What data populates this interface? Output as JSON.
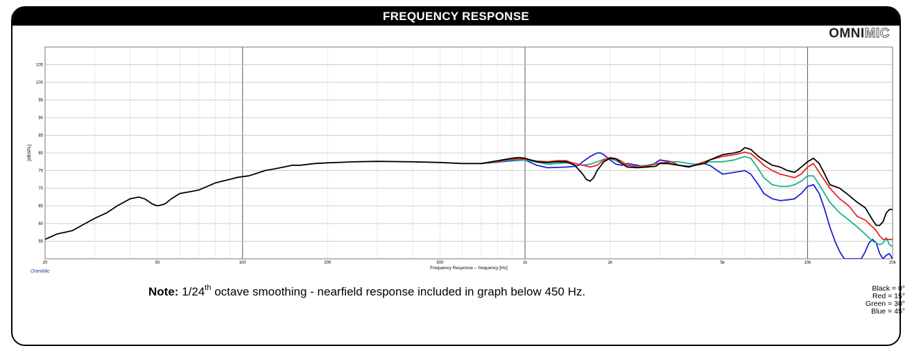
{
  "header": {
    "title": "FREQUENCY RESPONSE"
  },
  "logo": {
    "part1": "OMNI",
    "part2": "MIC"
  },
  "watermark": "OmniMic",
  "note": {
    "bold": "Note:",
    "prefix": "1/24",
    "sup": "th",
    "rest": "octave smoothing - nearfield response included in graph below 450 Hz."
  },
  "legend": [
    "Black = 0°",
    "Red = 15°",
    "Green = 30°",
    "Blue = 45°"
  ],
  "chart_data": {
    "type": "line",
    "title": "",
    "xlabel": "Frequency Response -- frequency [Hz]",
    "ylabel": "[dBSPL]",
    "x_scale": "log",
    "xlim": [
      20,
      20000
    ],
    "ylim": [
      50,
      110
    ],
    "y_ticks": [
      55,
      60,
      65,
      70,
      75,
      80,
      85,
      90,
      95,
      100,
      105
    ],
    "x_ticks": [
      {
        "value": 20,
        "label": "20"
      },
      {
        "value": 50,
        "label": "50"
      },
      {
        "value": 100,
        "label": "100"
      },
      {
        "value": 200,
        "label": "200"
      },
      {
        "value": 500,
        "label": "500"
      },
      {
        "value": 1000,
        "label": "1k"
      },
      {
        "value": 2000,
        "label": "2k"
      },
      {
        "value": 5000,
        "label": "5k"
      },
      {
        "value": 10000,
        "label": "10k"
      },
      {
        "value": 20000,
        "label": "20k"
      }
    ],
    "grid": true,
    "series": [
      {
        "name": "Black = 0°",
        "color": "#000000",
        "points": [
          [
            20,
            55.5
          ],
          [
            22,
            57
          ],
          [
            25,
            58
          ],
          [
            27,
            59.5
          ],
          [
            30,
            61.5
          ],
          [
            33,
            63
          ],
          [
            36,
            65
          ],
          [
            40,
            67
          ],
          [
            43,
            67.5
          ],
          [
            45,
            67
          ],
          [
            48,
            65.5
          ],
          [
            50,
            65
          ],
          [
            53,
            65.5
          ],
          [
            56,
            67
          ],
          [
            60,
            68.5
          ],
          [
            65,
            69
          ],
          [
            70,
            69.5
          ],
          [
            75,
            70.5
          ],
          [
            80,
            71.5
          ],
          [
            90,
            72.5
          ],
          [
            95,
            73
          ],
          [
            100,
            73.3
          ],
          [
            105,
            73.5
          ],
          [
            110,
            74
          ],
          [
            120,
            75
          ],
          [
            130,
            75.5
          ],
          [
            140,
            76
          ],
          [
            150,
            76.5
          ],
          [
            160,
            76.5
          ],
          [
            180,
            77
          ],
          [
            200,
            77.2
          ],
          [
            250,
            77.5
          ],
          [
            300,
            77.6
          ],
          [
            400,
            77.5
          ],
          [
            500,
            77.3
          ],
          [
            600,
            77
          ],
          [
            700,
            77
          ],
          [
            800,
            77.8
          ],
          [
            900,
            78.5
          ],
          [
            950,
            78.7
          ],
          [
            1000,
            78.5
          ],
          [
            1100,
            77.5
          ],
          [
            1200,
            77.3
          ],
          [
            1300,
            77.5
          ],
          [
            1400,
            77.5
          ],
          [
            1500,
            76.5
          ],
          [
            1600,
            74
          ],
          [
            1650,
            72.5
          ],
          [
            1700,
            72
          ],
          [
            1750,
            73
          ],
          [
            1800,
            75
          ],
          [
            1900,
            77.5
          ],
          [
            2000,
            78.5
          ],
          [
            2100,
            78.3
          ],
          [
            2200,
            77
          ],
          [
            2300,
            76
          ],
          [
            2500,
            75.8
          ],
          [
            2700,
            76
          ],
          [
            2900,
            76.2
          ],
          [
            3000,
            77
          ],
          [
            3200,
            77
          ],
          [
            3500,
            76.5
          ],
          [
            3800,
            76
          ],
          [
            4000,
            76.5
          ],
          [
            4300,
            77
          ],
          [
            4500,
            78
          ],
          [
            5000,
            79.5
          ],
          [
            5500,
            80
          ],
          [
            5800,
            80.5
          ],
          [
            6000,
            81.5
          ],
          [
            6300,
            81
          ],
          [
            6700,
            79
          ],
          [
            7000,
            78
          ],
          [
            7500,
            76.5
          ],
          [
            8000,
            76
          ],
          [
            8500,
            75
          ],
          [
            9000,
            74.5
          ],
          [
            9500,
            76
          ],
          [
            10000,
            77.5
          ],
          [
            10500,
            78.5
          ],
          [
            11000,
            77
          ],
          [
            11500,
            74
          ],
          [
            12000,
            71
          ],
          [
            13000,
            70
          ],
          [
            14000,
            68
          ],
          [
            15000,
            66
          ],
          [
            16000,
            64.5
          ],
          [
            17000,
            61
          ],
          [
            17500,
            59.5
          ],
          [
            18000,
            59.5
          ],
          [
            18500,
            60.5
          ],
          [
            19000,
            63
          ],
          [
            19500,
            64
          ],
          [
            20000,
            64
          ]
        ]
      },
      {
        "name": "Red = 15°",
        "color": "#e8231f",
        "points": [
          [
            700,
            77
          ],
          [
            800,
            77.6
          ],
          [
            900,
            78.3
          ],
          [
            1000,
            78.3
          ],
          [
            1100,
            77.7
          ],
          [
            1200,
            77.5
          ],
          [
            1300,
            77.8
          ],
          [
            1400,
            77.8
          ],
          [
            1500,
            77
          ],
          [
            1600,
            76.5
          ],
          [
            1700,
            76
          ],
          [
            1800,
            76.5
          ],
          [
            1900,
            78
          ],
          [
            2000,
            78.7
          ],
          [
            2100,
            78.4
          ],
          [
            2200,
            77.6
          ],
          [
            2300,
            76.5
          ],
          [
            2500,
            76
          ],
          [
            2700,
            76.3
          ],
          [
            2900,
            76.8
          ],
          [
            3000,
            77.2
          ],
          [
            3300,
            77.4
          ],
          [
            3500,
            76.5
          ],
          [
            3800,
            76
          ],
          [
            4000,
            76.6
          ],
          [
            4300,
            77.5
          ],
          [
            4500,
            78
          ],
          [
            5000,
            79
          ],
          [
            5500,
            79.5
          ],
          [
            6000,
            80.2
          ],
          [
            6300,
            79.8
          ],
          [
            6700,
            78
          ],
          [
            7000,
            76.5
          ],
          [
            7500,
            75
          ],
          [
            8000,
            74
          ],
          [
            8500,
            73.5
          ],
          [
            9000,
            73
          ],
          [
            9500,
            74
          ],
          [
            10000,
            76
          ],
          [
            10500,
            77
          ],
          [
            11000,
            74.5
          ],
          [
            12000,
            70
          ],
          [
            13000,
            67
          ],
          [
            14000,
            65
          ],
          [
            15000,
            62
          ],
          [
            16000,
            61
          ],
          [
            17000,
            59
          ],
          [
            17500,
            58
          ],
          [
            18000,
            56.5
          ],
          [
            18500,
            55.5
          ],
          [
            19000,
            55.5
          ],
          [
            19500,
            55.5
          ],
          [
            20000,
            55.5
          ]
        ]
      },
      {
        "name": "Green = 30°",
        "color": "#17b388",
        "points": [
          [
            700,
            77
          ],
          [
            800,
            77.5
          ],
          [
            900,
            78
          ],
          [
            1000,
            78
          ],
          [
            1100,
            77.4
          ],
          [
            1200,
            76.8
          ],
          [
            1300,
            77
          ],
          [
            1400,
            77.2
          ],
          [
            1500,
            77
          ],
          [
            1600,
            76.5
          ],
          [
            1700,
            76.8
          ],
          [
            1800,
            77.5
          ],
          [
            1900,
            78.2
          ],
          [
            2000,
            78.4
          ],
          [
            2100,
            77.8
          ],
          [
            2200,
            77
          ],
          [
            2300,
            76.5
          ],
          [
            2500,
            76.2
          ],
          [
            2700,
            76.5
          ],
          [
            2900,
            77
          ],
          [
            3000,
            77
          ],
          [
            3300,
            77.5
          ],
          [
            3500,
            77.5
          ],
          [
            3800,
            77
          ],
          [
            4000,
            76.8
          ],
          [
            4300,
            77
          ],
          [
            4500,
            77.5
          ],
          [
            5000,
            77.5
          ],
          [
            5500,
            78
          ],
          [
            6000,
            79
          ],
          [
            6300,
            78.5
          ],
          [
            6700,
            75.5
          ],
          [
            7000,
            73
          ],
          [
            7500,
            71
          ],
          [
            8000,
            70.5
          ],
          [
            8500,
            70.5
          ],
          [
            9000,
            71
          ],
          [
            9500,
            72
          ],
          [
            10000,
            73.5
          ],
          [
            10500,
            73.5
          ],
          [
            11000,
            71
          ],
          [
            12000,
            66
          ],
          [
            13000,
            63
          ],
          [
            14000,
            61
          ],
          [
            15000,
            59
          ],
          [
            16000,
            57
          ],
          [
            17000,
            55
          ],
          [
            17500,
            54.5
          ],
          [
            18000,
            54
          ],
          [
            18500,
            54.5
          ],
          [
            19000,
            56
          ],
          [
            19500,
            54
          ],
          [
            20000,
            53.5
          ]
        ]
      },
      {
        "name": "Blue = 45°",
        "color": "#1c1fd9",
        "points": [
          [
            700,
            77
          ],
          [
            800,
            77.4
          ],
          [
            900,
            77.8
          ],
          [
            1000,
            78
          ],
          [
            1100,
            76.5
          ],
          [
            1200,
            75.8
          ],
          [
            1300,
            75.9
          ],
          [
            1400,
            76
          ],
          [
            1500,
            76.2
          ],
          [
            1550,
            76.5
          ],
          [
            1600,
            77.5
          ],
          [
            1700,
            79
          ],
          [
            1800,
            80
          ],
          [
            1850,
            80
          ],
          [
            1900,
            79.5
          ],
          [
            2000,
            78
          ],
          [
            2100,
            76.8
          ],
          [
            2200,
            76.5
          ],
          [
            2300,
            77
          ],
          [
            2500,
            76.5
          ],
          [
            2700,
            76
          ],
          [
            2900,
            77.2
          ],
          [
            3000,
            78
          ],
          [
            3300,
            77.5
          ],
          [
            3500,
            76.5
          ],
          [
            3800,
            76.2
          ],
          [
            4000,
            76.5
          ],
          [
            4300,
            77
          ],
          [
            4500,
            76.5
          ],
          [
            4700,
            75.5
          ],
          [
            5000,
            74
          ],
          [
            5500,
            74.5
          ],
          [
            6000,
            75
          ],
          [
            6300,
            74
          ],
          [
            6700,
            71
          ],
          [
            7000,
            68.5
          ],
          [
            7500,
            67
          ],
          [
            8000,
            66.5
          ],
          [
            8500,
            66.7
          ],
          [
            9000,
            67
          ],
          [
            9500,
            68.5
          ],
          [
            10000,
            70.5
          ],
          [
            10500,
            71
          ],
          [
            11000,
            68.5
          ],
          [
            11500,
            64
          ],
          [
            12000,
            59
          ],
          [
            12500,
            55
          ],
          [
            13000,
            52
          ],
          [
            13500,
            50
          ],
          [
            15500,
            50
          ],
          [
            16000,
            52
          ],
          [
            16500,
            54.5
          ],
          [
            17000,
            55.5
          ],
          [
            17500,
            54.5
          ],
          [
            18000,
            51.5
          ],
          [
            18500,
            50
          ],
          [
            19000,
            51
          ],
          [
            19500,
            51.5
          ],
          [
            20000,
            50
          ]
        ]
      }
    ]
  }
}
